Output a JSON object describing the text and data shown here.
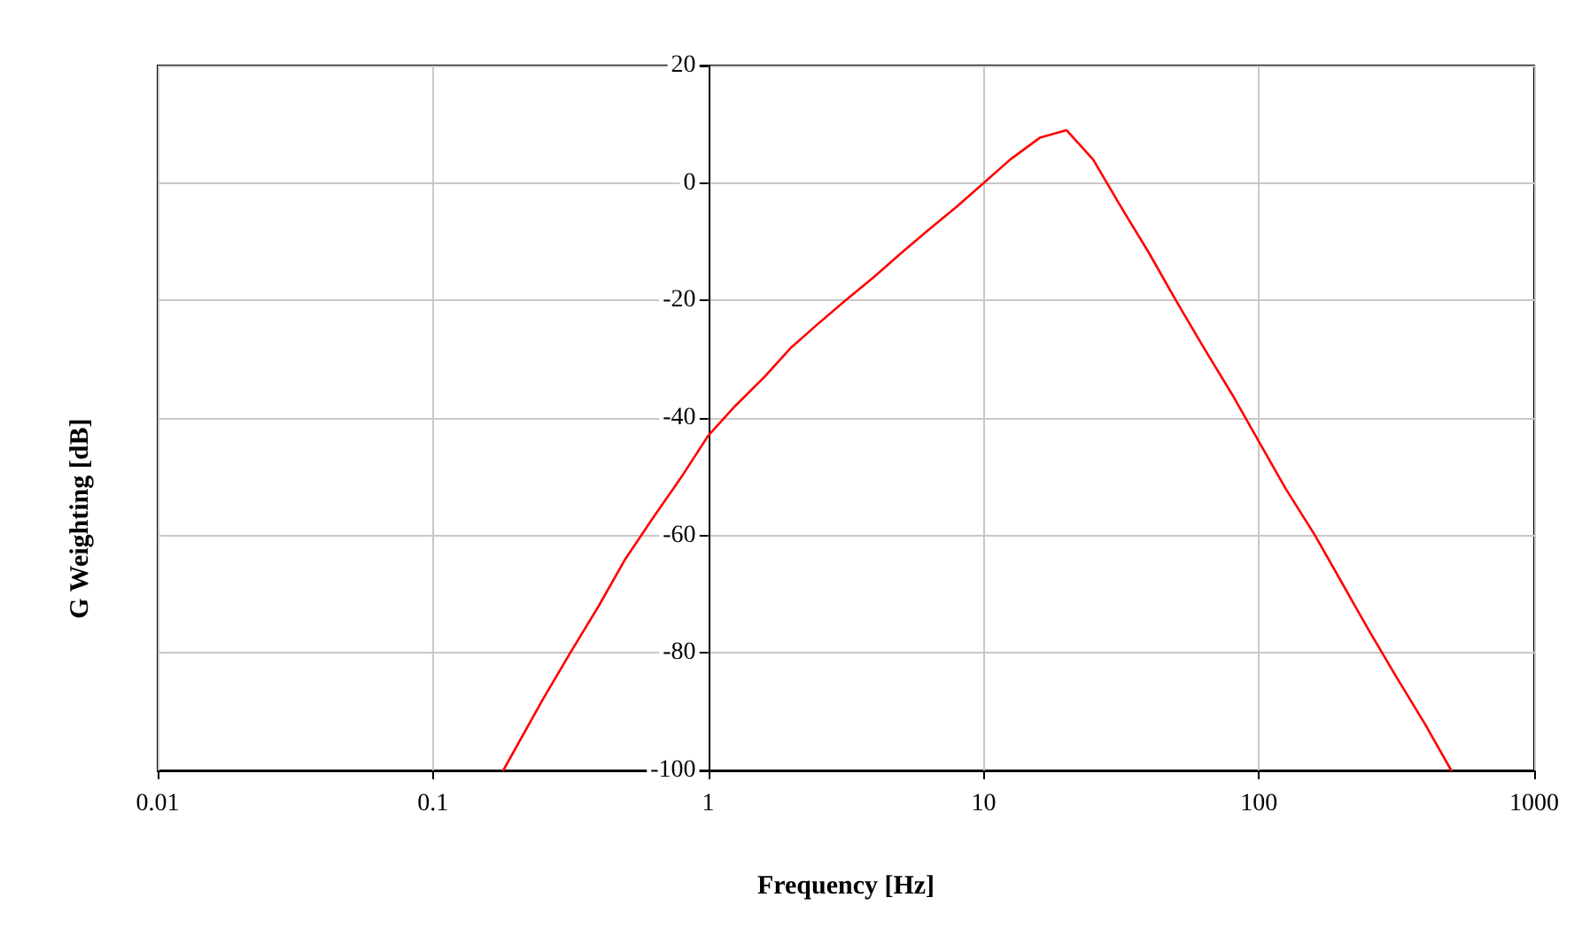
{
  "chart_data": {
    "type": "line",
    "xlabel": "Frequency [Hz]",
    "ylabel": "G Weighting [dB]",
    "log": "x",
    "grid": true,
    "marker": "none",
    "xlim": [
      0.01,
      1000
    ],
    "xticks": [
      0.01,
      0.1,
      1,
      10,
      100,
      1000
    ],
    "ylim": [
      -100,
      20
    ],
    "yticks": [
      -100,
      -80,
      -60,
      -40,
      -20,
      0,
      20
    ],
    "x": [
      0.18,
      0.25,
      0.315,
      0.4,
      0.5,
      0.63,
      0.8,
      1,
      1.25,
      1.6,
      2,
      2.5,
      3.15,
      4,
      5,
      6.3,
      8,
      10,
      12.5,
      16,
      20,
      25,
      31.5,
      40,
      50,
      63,
      80,
      100,
      125,
      160,
      200,
      250,
      315,
      400,
      500
    ],
    "series": [
      {
        "color": "#ff0000",
        "values": [
          -100,
          -88,
          -80,
          -72,
          -64,
          -57,
          -50,
          -43,
          -38,
          -33,
          -28,
          -24,
          -20,
          -16,
          -12,
          -8,
          -4,
          0,
          4,
          7.7,
          9,
          4,
          -4,
          -12,
          -20,
          -28,
          -36,
          -44,
          -52,
          -60,
          -68,
          -76,
          -84,
          -92,
          -100
        ]
      }
    ]
  }
}
